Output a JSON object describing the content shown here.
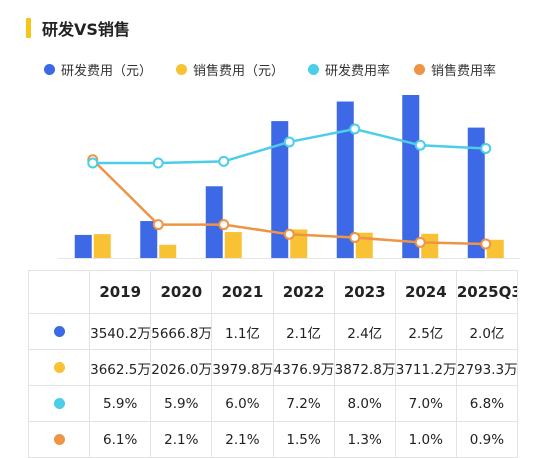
{
  "title": "研发VS销售",
  "colors": {
    "rd_cost": "#3D68E6",
    "sales_cost": "#F8C234",
    "rd_rate": "#4CCDE8",
    "sales_rate": "#EE9445",
    "title_accent": "#F5C518"
  },
  "chart_data": {
    "type": "bar",
    "title": "研发VS销售",
    "categories": [
      "2019",
      "2020",
      "2021",
      "2022",
      "2023",
      "2024",
      "2025Q3"
    ],
    "series": [
      {
        "name": "研发费用（元）",
        "type": "bar",
        "values": [
          35402000,
          56668000,
          110000000,
          210000000,
          240000000,
          250000000,
          200000000
        ]
      },
      {
        "name": "销售费用（元）",
        "type": "bar",
        "values": [
          36625000,
          20260000,
          39798000,
          43769000,
          38728000,
          37112000,
          27933000
        ]
      },
      {
        "name": "研发费用率",
        "type": "line",
        "values": [
          5.9,
          5.9,
          6.0,
          7.2,
          8.0,
          7.0,
          6.8
        ]
      },
      {
        "name": "销售费用率",
        "type": "line",
        "values": [
          6.1,
          2.1,
          2.1,
          1.5,
          1.3,
          1.0,
          0.9
        ]
      }
    ],
    "legend_position": "top",
    "grid": false
  },
  "table": {
    "headers": [
      "",
      "2019",
      "2020",
      "2021",
      "2022",
      "2023",
      "2024",
      "2025Q3"
    ],
    "rows": [
      {
        "color": "#3D68E6",
        "cells": [
          "3540.2万",
          "5666.8万",
          "1.1亿",
          "2.1亿",
          "2.4亿",
          "2.5亿",
          "2.0亿"
        ]
      },
      {
        "color": "#F8C234",
        "cells": [
          "3662.5万",
          "2026.0万",
          "3979.8万",
          "4376.9万",
          "3872.8万",
          "3711.2万",
          "2793.3万"
        ]
      },
      {
        "color": "#4CCDE8",
        "cells": [
          "5.9%",
          "5.9%",
          "6.0%",
          "7.2%",
          "8.0%",
          "7.0%",
          "6.8%"
        ]
      },
      {
        "color": "#EE9445",
        "cells": [
          "6.1%",
          "2.1%",
          "2.1%",
          "1.5%",
          "1.3%",
          "1.0%",
          "0.9%"
        ]
      }
    ]
  }
}
